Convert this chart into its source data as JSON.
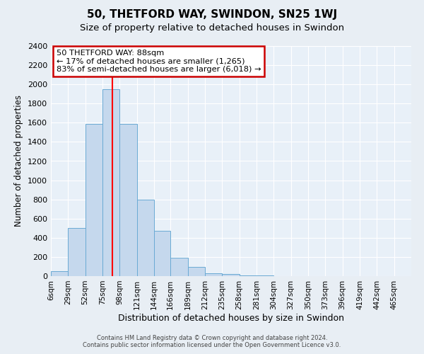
{
  "title": "50, THETFORD WAY, SWINDON, SN25 1WJ",
  "subtitle": "Size of property relative to detached houses in Swindon",
  "xlabel": "Distribution of detached houses by size in Swindon",
  "ylabel": "Number of detached properties",
  "bin_labels": [
    "6sqm",
    "29sqm",
    "52sqm",
    "75sqm",
    "98sqm",
    "121sqm",
    "144sqm",
    "166sqm",
    "189sqm",
    "212sqm",
    "235sqm",
    "258sqm",
    "281sqm",
    "304sqm",
    "327sqm",
    "350sqm",
    "373sqm",
    "396sqm",
    "419sqm",
    "442sqm",
    "465sqm"
  ],
  "bin_edges": [
    6,
    29,
    52,
    75,
    98,
    121,
    144,
    166,
    189,
    212,
    235,
    258,
    281,
    304,
    327,
    350,
    373,
    396,
    419,
    442,
    465,
    488
  ],
  "bar_heights": [
    50,
    500,
    1590,
    1950,
    1590,
    800,
    475,
    190,
    95,
    30,
    20,
    5,
    5,
    0,
    0,
    0,
    0,
    0,
    0,
    0,
    0
  ],
  "bar_color": "#c5d8ed",
  "bar_edge_color": "#6aaad4",
  "ylim": [
    0,
    2400
  ],
  "yticks": [
    0,
    200,
    400,
    600,
    800,
    1000,
    1200,
    1400,
    1600,
    1800,
    2000,
    2200,
    2400
  ],
  "red_line_x": 88,
  "annotation_title": "50 THETFORD WAY: 88sqm",
  "annotation_line1": "← 17% of detached houses are smaller (1,265)",
  "annotation_line2": "83% of semi-detached houses are larger (6,018) →",
  "annotation_box_color": "#ffffff",
  "annotation_box_edge": "#cc0000",
  "footer1": "Contains HM Land Registry data © Crown copyright and database right 2024.",
  "footer2": "Contains public sector information licensed under the Open Government Licence v3.0.",
  "figure_color": "#e8eef4",
  "plot_background": "#e8f0f8",
  "grid_color": "#ffffff",
  "title_fontsize": 11,
  "subtitle_fontsize": 9.5
}
